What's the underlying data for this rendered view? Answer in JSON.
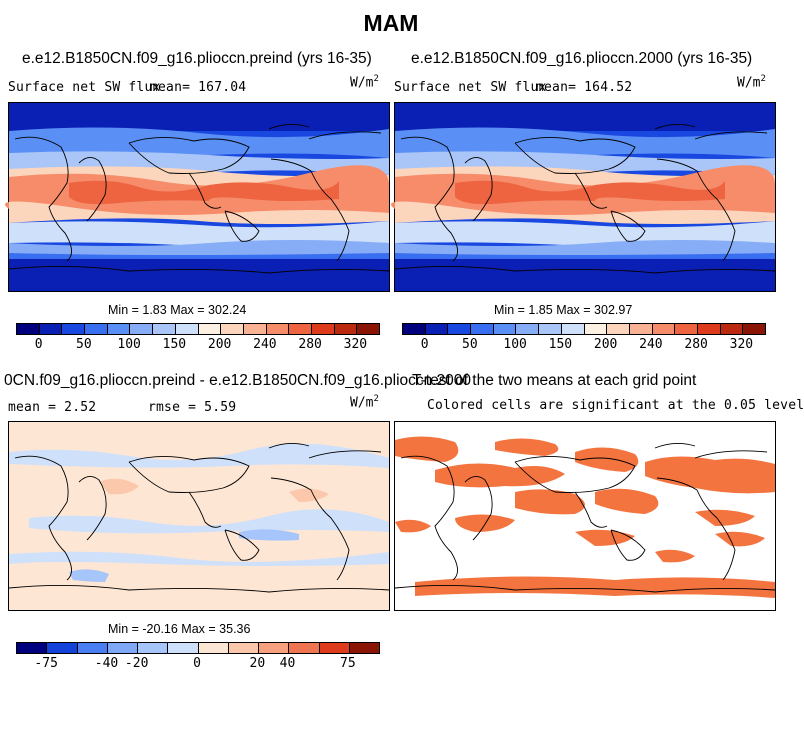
{
  "figure": {
    "season_title": "MAM"
  },
  "panels": {
    "preind": {
      "title": "e.e12.B1850CN.f09_g16.plioccn.preind (yrs 16-35)",
      "variable": "Surface net SW flux",
      "mean_label": "mean= 167.04",
      "units": "W/m",
      "units_exp": "2",
      "minmax": "Min =    1.83 Max = 302.24",
      "colorbar_ticks": [
        "0",
        "50",
        "100",
        "150",
        "200",
        "240",
        "280",
        "320"
      ]
    },
    "y2000": {
      "title": "e.e12.B1850CN.f09_g16.plioccn.2000 (yrs 16-35)",
      "variable": "Surface net SW flux",
      "mean_label": "mean= 164.52",
      "units": "W/m",
      "units_exp": "2",
      "minmax": "Min =    1.85 Max = 302.97",
      "colorbar_ticks": [
        "0",
        "50",
        "100",
        "150",
        "200",
        "240",
        "280",
        "320"
      ]
    },
    "diff": {
      "title": "0CN.f09_g16.plioccn.preind - e.e12.B1850CN.f09_g16.plioccn.2000",
      "mean_label": "mean =   2.52",
      "rmse_label": "rmse =   5.59",
      "units": "W/m",
      "units_exp": "2",
      "minmax": "Min = -20.16 Max =  35.36",
      "colorbar_ticks": [
        "-75",
        "-40",
        "-20",
        "0",
        "20",
        "40",
        "75"
      ]
    },
    "ttest": {
      "title": "T-test of the two means at each grid point",
      "subtitle": "Colored cells are significant at the 0.05 level"
    }
  },
  "colors": {
    "full_scale": [
      "#00007f",
      "#0a1fb4",
      "#1848e0",
      "#3a6ef0",
      "#5a8ff5",
      "#86adf6",
      "#aac6f8",
      "#cfe0fb",
      "#fbf0e2",
      "#fcd5bd",
      "#f9b294",
      "#f68c6a",
      "#ee6440",
      "#de3b1d",
      "#bb2910",
      "#8a1505"
    ],
    "diff_scale": [
      "#00007f",
      "#1442d8",
      "#4a7ef2",
      "#7ea8f6",
      "#a6c5fa",
      "#cfe0fb",
      "#fde6d4",
      "#fbc8ab",
      "#f6a07d",
      "#ef7450",
      "#de3b1d",
      "#8a1505"
    ],
    "significant": "#f4743f",
    "map_background_diff": "#fde6d4"
  }
}
